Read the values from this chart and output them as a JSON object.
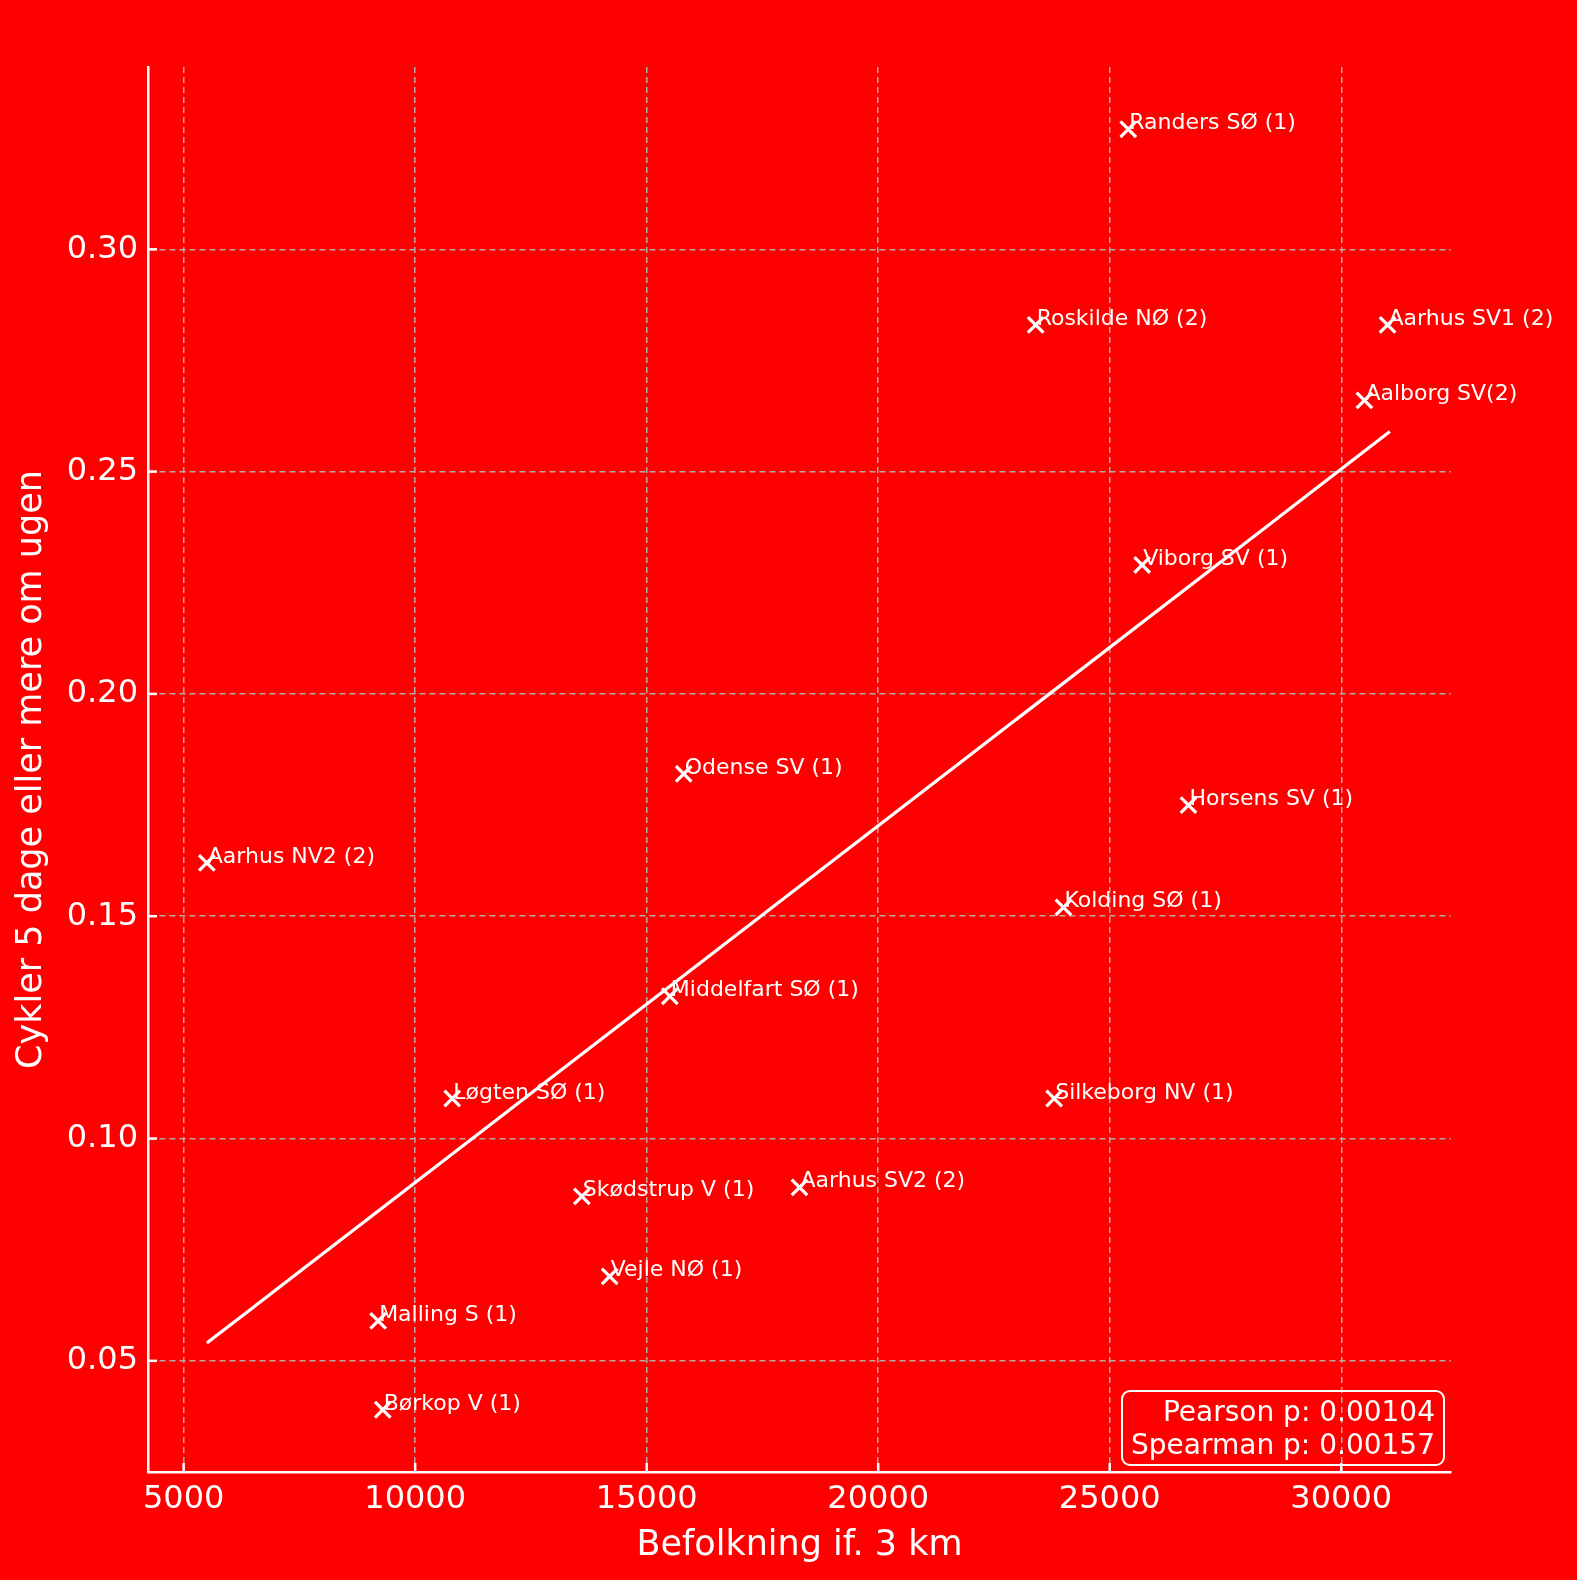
{
  "chart_data": {
    "type": "scatter",
    "xlabel": "Befolkning if. 3 km",
    "ylabel": "Cykler 5 dage eller mere om ugen",
    "series": [
      {
        "color": "#ffffff",
        "x": [
          25400,
          23400,
          31000,
          30500,
          25700,
          15800,
          26700,
          5500,
          24000,
          15500,
          10800,
          23800,
          13600,
          18300,
          14200,
          9200,
          9300
        ],
        "values": [
          0.327,
          0.283,
          0.283,
          0.266,
          0.229,
          0.182,
          0.175,
          0.162,
          0.152,
          0.132,
          0.109,
          0.109,
          0.087,
          0.089,
          0.069,
          0.059,
          0.039
        ]
      },
      {
        "type": "line",
        "color": "#ffffff",
        "marker": "none",
        "x": [
          5500,
          31050
        ],
        "values": [
          0.054,
          0.259
        ]
      }
    ],
    "xlim": [
      4230,
      32370
    ],
    "ylim": [
      0.025,
      0.341
    ],
    "xticks": [
      5000,
      10000,
      15000,
      20000,
      25000,
      30000
    ],
    "yticks": [
      {
        "value": 0.05,
        "label": "0.05"
      },
      {
        "value": 0.1,
        "label": "0.10"
      },
      {
        "value": 0.15,
        "label": "0.15"
      },
      {
        "value": 0.2,
        "label": "0.20"
      },
      {
        "value": 0.25,
        "label": "0.25"
      },
      {
        "value": 0.3,
        "label": "0.30"
      }
    ],
    "grid": true,
    "legend": false,
    "marker": "cross",
    "annotations": [
      {
        "text": "Randers SØ (1)",
        "x": 25400,
        "y": 0.327
      },
      {
        "text": "Roskilde NØ (2)",
        "x": 23400,
        "y": 0.283
      },
      {
        "text": "Aarhus SV1 (2)",
        "x": 31000,
        "y": 0.283
      },
      {
        "text": "Aalborg SV(2)",
        "x": 30500,
        "y": 0.266
      },
      {
        "text": "Viborg SV (1)",
        "x": 25700,
        "y": 0.229
      },
      {
        "text": "Odense SV (1)",
        "x": 15800,
        "y": 0.182
      },
      {
        "text": "Horsens SV (1)",
        "x": 26700,
        "y": 0.175
      },
      {
        "text": "Aarhus NV2 (2)",
        "x": 5500,
        "y": 0.162
      },
      {
        "text": "Kolding SØ (1)",
        "x": 24000,
        "y": 0.152
      },
      {
        "text": "Middelfart SØ (1)",
        "x": 15500,
        "y": 0.132
      },
      {
        "text": "Løgten SØ (1)",
        "x": 10800,
        "y": 0.109
      },
      {
        "text": "Silkeborg NV (1)",
        "x": 23800,
        "y": 0.109
      },
      {
        "text": "Skødstrup V (1)",
        "x": 13600,
        "y": 0.087
      },
      {
        "text": "Aarhus SV2 (2)",
        "x": 18300,
        "y": 0.089
      },
      {
        "text": "Vejle NØ (1)",
        "x": 14200,
        "y": 0.069
      },
      {
        "text": "Malling S (1)",
        "x": 9200,
        "y": 0.059
      },
      {
        "text": "Børkop V (1)",
        "x": 9300,
        "y": 0.039
      },
      "Pearson p: 0.00104",
      "Spearman p: 0.00157"
    ]
  }
}
